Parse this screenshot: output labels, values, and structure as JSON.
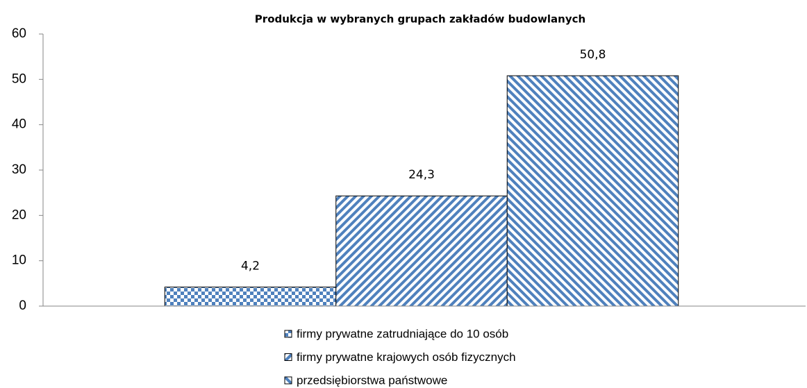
{
  "chart_data": {
    "type": "bar",
    "title": "Produkcja w wybranych grupach zakładów budowlanych",
    "categories": [
      null
    ],
    "series": [
      {
        "name": "firmy prywatne zatrudniające do 10 osób",
        "color": "#4f81bd",
        "pattern": "checker",
        "values": [
          4.2
        ],
        "value_labels": [
          "4,2"
        ]
      },
      {
        "name": "firmy prywatne krajowych osób fizycznych",
        "color": "#4f81bd",
        "pattern": "diagonal-down",
        "values": [
          24.3
        ],
        "value_labels": [
          "24,3"
        ]
      },
      {
        "name": "przedsiębiorstwa państwowe",
        "color": "#4f81bd",
        "pattern": "diagonal-up",
        "values": [
          50.8
        ],
        "value_labels": [
          "50,8"
        ]
      }
    ],
    "ylim": [
      0,
      60
    ],
    "yticks": [
      0,
      10,
      20,
      30,
      40,
      50,
      60
    ],
    "legend": "bottom"
  }
}
